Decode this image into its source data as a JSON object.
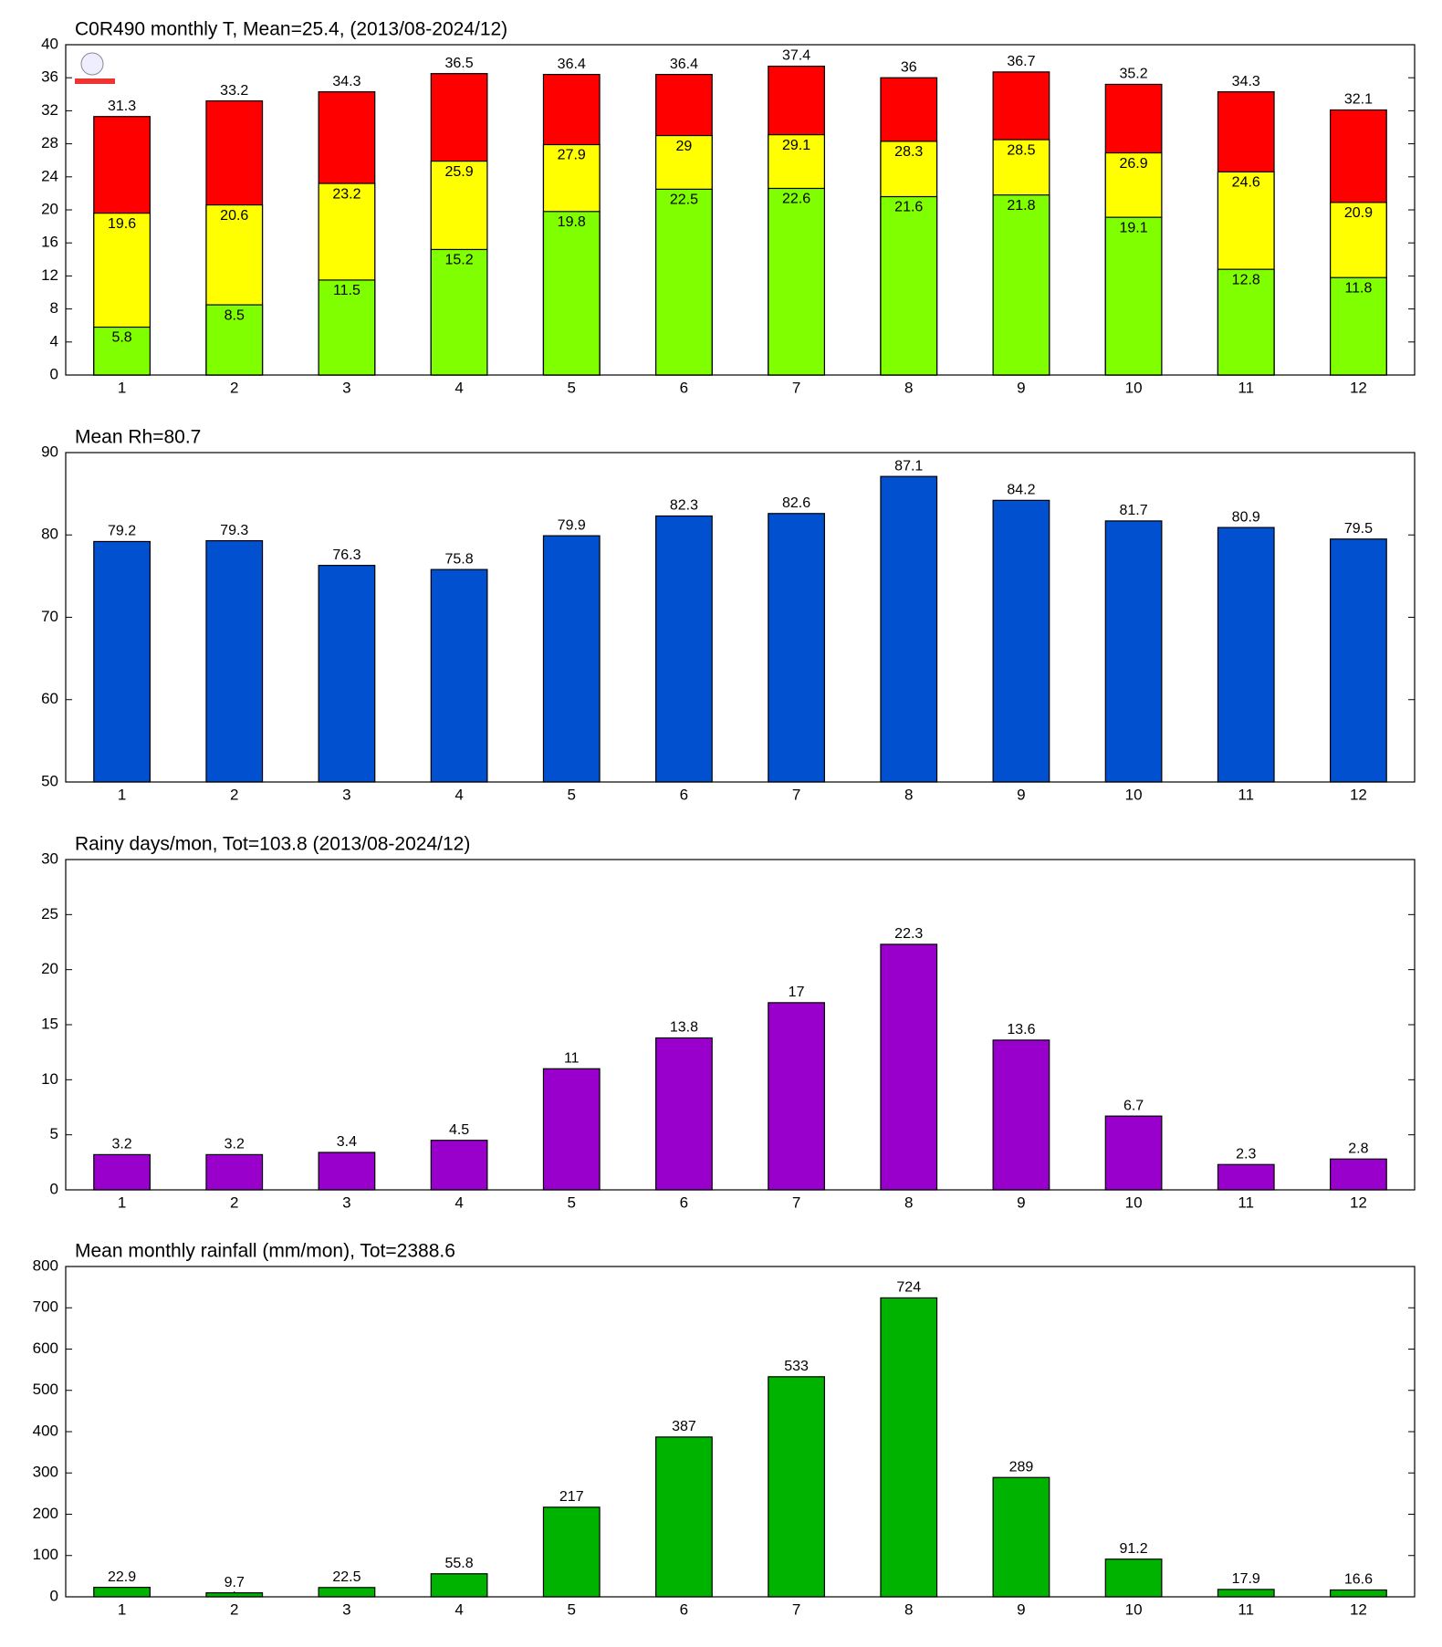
{
  "chart_data": [
    {
      "type": "bar",
      "title": "C0R490 monthly T, Mean=25.4, (2013/08-2024/12)",
      "categories": [
        "1",
        "2",
        "3",
        "4",
        "5",
        "6",
        "7",
        "8",
        "9",
        "10",
        "11",
        "12"
      ],
      "series": [
        {
          "color": "#ff0000",
          "values": [
            31.3,
            33.2,
            34.3,
            36.5,
            36.4,
            36.4,
            37.4,
            36,
            36.7,
            35.2,
            34.3,
            32.1
          ]
        },
        {
          "color": "#ffff00",
          "values": [
            19.6,
            20.6,
            23.2,
            25.9,
            27.9,
            29,
            29.1,
            28.3,
            28.5,
            26.9,
            24.6,
            20.9
          ]
        },
        {
          "color": "#80ff00",
          "values": [
            5.8,
            8.5,
            11.5,
            15.2,
            19.8,
            22.5,
            22.6,
            21.6,
            21.8,
            19.1,
            12.8,
            11.8
          ]
        }
      ],
      "ylim": [
        0,
        40
      ],
      "yticks": [
        0,
        4,
        8,
        12,
        16,
        20,
        24,
        28,
        32,
        36,
        40
      ]
    },
    {
      "type": "bar",
      "title": "Mean Rh=80.7",
      "categories": [
        "1",
        "2",
        "3",
        "4",
        "5",
        "6",
        "7",
        "8",
        "9",
        "10",
        "11",
        "12"
      ],
      "series": [
        {
          "color": "#0050d0",
          "values": [
            79.2,
            79.3,
            76.3,
            75.8,
            79.9,
            82.3,
            82.6,
            87.1,
            84.2,
            81.7,
            80.9,
            79.5
          ]
        }
      ],
      "ylim": [
        50,
        90
      ],
      "yticks": [
        50,
        60,
        70,
        80,
        90
      ]
    },
    {
      "type": "bar",
      "title": "Rainy days/mon, Tot=103.8 (2013/08-2024/12)",
      "categories": [
        "1",
        "2",
        "3",
        "4",
        "5",
        "6",
        "7",
        "8",
        "9",
        "10",
        "11",
        "12"
      ],
      "series": [
        {
          "color": "#9900cc",
          "values": [
            3.2,
            3.2,
            3.4,
            4.5,
            11,
            13.8,
            17,
            22.3,
            13.6,
            6.7,
            2.3,
            2.8
          ]
        }
      ],
      "ylim": [
        0,
        30
      ],
      "yticks": [
        0,
        5,
        10,
        15,
        20,
        25,
        30
      ]
    },
    {
      "type": "bar",
      "title": "Mean monthly rainfall (mm/mon), Tot=2388.6",
      "categories": [
        "1",
        "2",
        "3",
        "4",
        "5",
        "6",
        "7",
        "8",
        "9",
        "10",
        "11",
        "12"
      ],
      "series": [
        {
          "color": "#00b300",
          "values": [
            22.9,
            9.7,
            22.5,
            55.8,
            217,
            387,
            533,
            724,
            289,
            91.2,
            17.9,
            16.6
          ]
        }
      ],
      "ylim": [
        0,
        800
      ],
      "yticks": [
        0,
        100,
        200,
        300,
        400,
        500,
        600,
        700,
        800
      ]
    }
  ]
}
